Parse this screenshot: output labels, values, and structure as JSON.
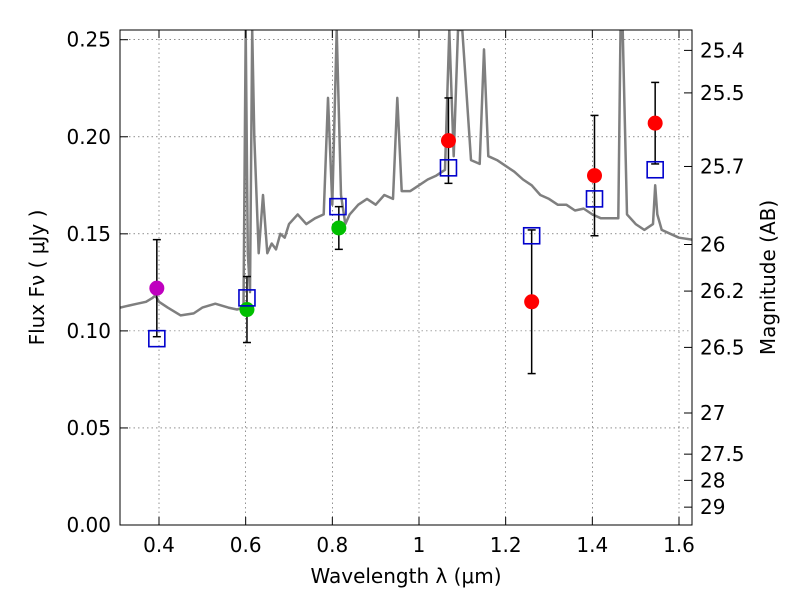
{
  "chart_data": {
    "type": "scatter",
    "title": "",
    "xlabel": "Wavelength  λ (μm)",
    "ylabel": "Flux  Fν  ( μJy )",
    "y2label": "Magnitude (AB)",
    "xlim": [
      0.31,
      1.63
    ],
    "ylim": [
      0.0,
      0.255
    ],
    "grid": true,
    "x_ticks": [
      {
        "value": 0.4,
        "label": "0.4"
      },
      {
        "value": 0.6,
        "label": "0.6"
      },
      {
        "value": 0.8,
        "label": "0.8"
      },
      {
        "value": 1.0,
        "label": "1"
      },
      {
        "value": 1.2,
        "label": "1.2"
      },
      {
        "value": 1.4,
        "label": "1.4"
      },
      {
        "value": 1.6,
        "label": "1.6"
      }
    ],
    "y_ticks": [
      {
        "value": 0.0,
        "label": "0.00"
      },
      {
        "value": 0.05,
        "label": "0.05"
      },
      {
        "value": 0.1,
        "label": "0.10"
      },
      {
        "value": 0.15,
        "label": "0.15"
      },
      {
        "value": 0.2,
        "label": "0.20"
      },
      {
        "value": 0.25,
        "label": "0.25"
      }
    ],
    "y2_ticks": [
      {
        "flux": 0.2445,
        "label": "25.4"
      },
      {
        "flux": 0.2226,
        "label": "25.5"
      },
      {
        "flux": 0.1847,
        "label": "25.7"
      },
      {
        "flux": 0.1445,
        "label": "26"
      },
      {
        "flux": 0.1205,
        "label": "26.2"
      },
      {
        "flux": 0.0915,
        "label": "26.5"
      },
      {
        "flux": 0.0577,
        "label": "27"
      },
      {
        "flux": 0.0365,
        "label": "27.5"
      },
      {
        "flux": 0.023,
        "label": "28"
      },
      {
        "flux": 0.0092,
        "label": "29"
      }
    ],
    "model_spectrum": {
      "color": "#7f7f7f",
      "x": [
        0.31,
        0.33,
        0.35,
        0.37,
        0.385,
        0.39,
        0.395,
        0.4,
        0.42,
        0.45,
        0.48,
        0.5,
        0.53,
        0.56,
        0.58,
        0.595,
        0.6,
        0.605,
        0.61,
        0.615,
        0.62,
        0.63,
        0.64,
        0.65,
        0.66,
        0.67,
        0.68,
        0.69,
        0.7,
        0.72,
        0.74,
        0.76,
        0.78,
        0.79,
        0.8,
        0.81,
        0.82,
        0.83,
        0.84,
        0.86,
        0.88,
        0.9,
        0.92,
        0.94,
        0.95,
        0.96,
        0.98,
        1.0,
        1.02,
        1.04,
        1.06,
        1.07,
        1.08,
        1.09,
        1.1,
        1.12,
        1.14,
        1.15,
        1.16,
        1.18,
        1.2,
        1.22,
        1.24,
        1.26,
        1.28,
        1.3,
        1.32,
        1.34,
        1.36,
        1.38,
        1.4,
        1.42,
        1.44,
        1.46,
        1.465,
        1.47,
        1.48,
        1.5,
        1.52,
        1.54,
        1.545,
        1.55,
        1.56,
        1.58,
        1.6,
        1.63
      ],
      "y": [
        0.112,
        0.113,
        0.114,
        0.115,
        0.117,
        0.118,
        0.117,
        0.115,
        0.112,
        0.108,
        0.109,
        0.112,
        0.114,
        0.112,
        0.111,
        0.112,
        0.255,
        0.14,
        0.12,
        0.255,
        0.2,
        0.14,
        0.17,
        0.14,
        0.145,
        0.142,
        0.15,
        0.148,
        0.155,
        0.16,
        0.155,
        0.158,
        0.16,
        0.22,
        0.165,
        0.255,
        0.17,
        0.155,
        0.16,
        0.165,
        0.168,
        0.165,
        0.17,
        0.168,
        0.22,
        0.172,
        0.172,
        0.175,
        0.178,
        0.18,
        0.183,
        0.255,
        0.19,
        0.255,
        0.255,
        0.188,
        0.186,
        0.245,
        0.19,
        0.188,
        0.185,
        0.182,
        0.178,
        0.175,
        0.17,
        0.168,
        0.165,
        0.165,
        0.162,
        0.163,
        0.16,
        0.158,
        0.158,
        0.158,
        0.255,
        0.255,
        0.16,
        0.155,
        0.152,
        0.155,
        0.175,
        0.16,
        0.152,
        0.15,
        0.148,
        0.147
      ]
    },
    "series": [
      {
        "marker": "circle",
        "color": "#bf00bf",
        "points": [
          {
            "x": 0.395,
            "y": 0.122,
            "err_low": 0.025,
            "err_high": 0.025
          }
        ]
      },
      {
        "marker": "circle",
        "color": "#00bf00",
        "points": [
          {
            "x": 0.603,
            "y": 0.111,
            "err_low": 0.017,
            "err_high": 0.017
          },
          {
            "x": 0.815,
            "y": 0.153,
            "err_low": 0.011,
            "err_high": 0.011
          }
        ]
      },
      {
        "marker": "circle",
        "color": "#ff0000",
        "points": [
          {
            "x": 1.068,
            "y": 0.198,
            "err_low": 0.022,
            "err_high": 0.022
          },
          {
            "x": 1.26,
            "y": 0.115,
            "err_low": 0.037,
            "err_high": 0.037
          },
          {
            "x": 1.405,
            "y": 0.18,
            "err_low": 0.031,
            "err_high": 0.031
          },
          {
            "x": 1.545,
            "y": 0.207,
            "err_low": 0.021,
            "err_high": 0.021
          }
        ]
      },
      {
        "marker": "square-open",
        "color": "#0000cc",
        "points": [
          {
            "x": 0.395,
            "y": 0.096
          },
          {
            "x": 0.603,
            "y": 0.117
          },
          {
            "x": 0.813,
            "y": 0.164
          },
          {
            "x": 1.068,
            "y": 0.184
          },
          {
            "x": 1.26,
            "y": 0.149
          },
          {
            "x": 1.405,
            "y": 0.168
          },
          {
            "x": 1.545,
            "y": 0.183
          }
        ]
      }
    ]
  }
}
